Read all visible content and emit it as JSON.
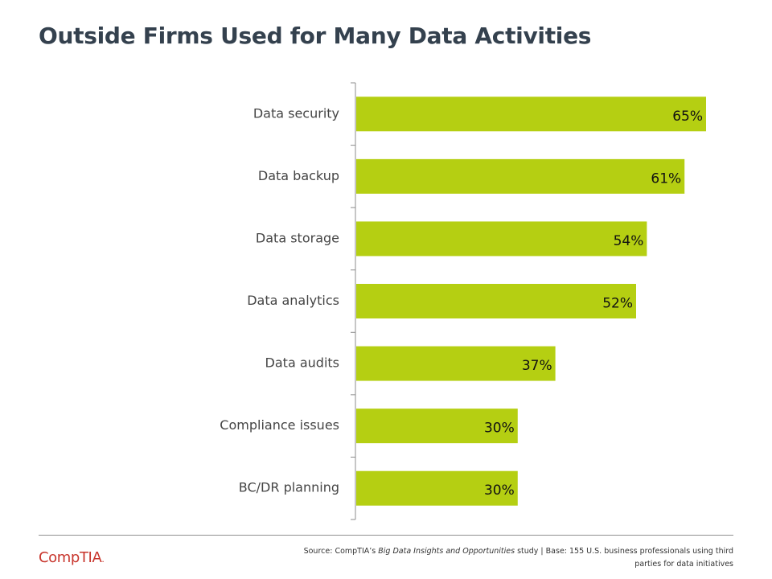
{
  "title": "Outside Firms Used for Many Data Activities",
  "chart_data": {
    "type": "bar",
    "orientation": "horizontal",
    "categories": [
      "Data security",
      "Data backup",
      "Data storage",
      "Data analytics",
      "Data audits",
      "Compliance issues",
      "BC/DR planning"
    ],
    "values": [
      65,
      61,
      54,
      52,
      37,
      30,
      30
    ],
    "value_labels": [
      "65%",
      "61%",
      "54%",
      "52%",
      "37%",
      "30%",
      "30%"
    ],
    "unit": "%",
    "xlim": [
      0,
      70
    ],
    "grid": false,
    "legend": "none",
    "bar_color": "#b5cf12"
  },
  "footer": {
    "logo_text": "CompTIA",
    "logo_mark": ".",
    "logo_color": "#c8362d",
    "source_prefix": "Source: CompTIA’s ",
    "source_study": "Big Data Insights and Opportunities",
    "source_suffix": " study | Base: 155 U.S. business professionals using third parties for data initiatives"
  }
}
